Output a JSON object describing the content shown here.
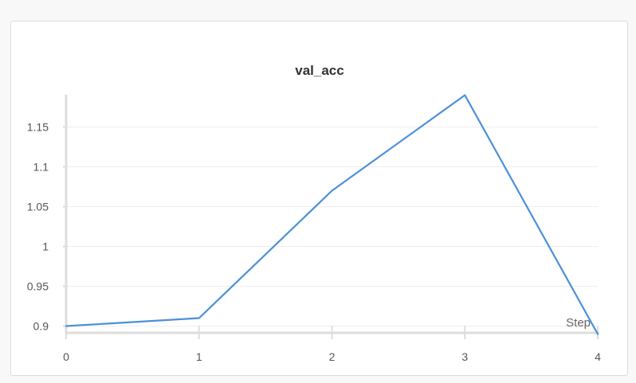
{
  "chart_data": {
    "type": "line",
    "title": "val_acc",
    "xlabel": "Step",
    "ylabel": "",
    "x": [
      0,
      1,
      2,
      3,
      4
    ],
    "series": [
      {
        "values": [
          0.9,
          0.91,
          1.07,
          1.19,
          0.89
        ],
        "color": "#4a90d9"
      }
    ],
    "xticks": [
      "0",
      "1",
      "2",
      "3",
      "4"
    ],
    "yticks": [
      {
        "value": 0.9,
        "label": "0.9"
      },
      {
        "value": 0.95,
        "label": "0.95"
      },
      {
        "value": 1.0,
        "label": "1"
      },
      {
        "value": 1.05,
        "label": "1.05"
      },
      {
        "value": 1.1,
        "label": "1.1"
      },
      {
        "value": 1.15,
        "label": "1.15"
      }
    ],
    "xlim": [
      0,
      4
    ],
    "ylim": [
      0.89,
      1.19
    ],
    "grid": true
  }
}
